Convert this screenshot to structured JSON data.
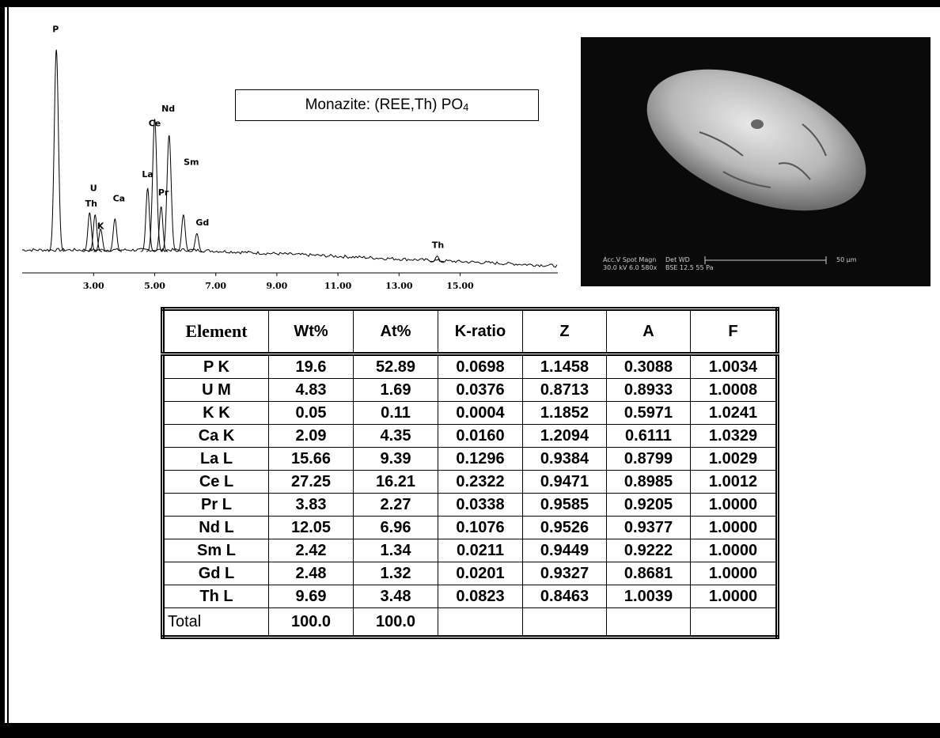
{
  "chart_data": {
    "type": "spectrum",
    "xlim": [
      0.66,
      18.2
    ],
    "ylim": [
      0,
      100
    ],
    "xticks": [
      {
        "value": 3,
        "label": "3.00"
      },
      {
        "value": 5,
        "label": "5.00"
      },
      {
        "value": 7,
        "label": "7.00"
      },
      {
        "value": 9,
        "label": "9.00"
      },
      {
        "value": 11,
        "label": "11.00"
      },
      {
        "value": 13,
        "label": "13.00"
      },
      {
        "value": 15,
        "label": "15.00"
      }
    ],
    "color": "#000000",
    "peaks": [
      {
        "label": "P",
        "x": 1.78,
        "height": 99
      },
      {
        "label": "Th",
        "x": 2.87,
        "height": 19
      },
      {
        "label": "U",
        "x": 3.05,
        "height": 18
      },
      {
        "label": "K",
        "x": 3.23,
        "height": 11
      },
      {
        "label": "Ca",
        "x": 3.7,
        "height": 16
      },
      {
        "label": "La",
        "x": 4.77,
        "height": 31
      },
      {
        "label": "Ce",
        "x": 5.0,
        "height": 65
      },
      {
        "label": "Pr",
        "x": 5.21,
        "height": 22
      },
      {
        "label": "Nd",
        "x": 5.47,
        "height": 57
      },
      {
        "label": "Sm",
        "x": 5.94,
        "height": 18
      },
      {
        "label": "Gd",
        "x": 6.38,
        "height": 9
      },
      {
        "label": "Th",
        "x": 14.25,
        "height": 3
      }
    ]
  },
  "formula_box": {
    "text": "Monazite:  (REE,Th) PO",
    "subscript": "4"
  },
  "image": {
    "caption": [
      "Acc.V  Spot Magn",
      "30.0 kV 6.0  580x",
      "Det  WD",
      "BSE 12.5  55 Pa"
    ],
    "scale_label": "50 µm"
  },
  "table": {
    "header": [
      "Element",
      "Wt%",
      "At%",
      "K-ratio",
      "Z",
      "A",
      "F"
    ],
    "rows": [
      [
        "P K",
        "19.6",
        "52.89",
        "0.0698",
        "1.1458",
        "0.3088",
        "1.0034"
      ],
      [
        "U M",
        "4.83",
        "1.69",
        "0.0376",
        "0.8713",
        "0.8933",
        "1.0008"
      ],
      [
        "K K",
        "0.05",
        "0.11",
        "0.0004",
        "1.1852",
        "0.5971",
        "1.0241"
      ],
      [
        "Ca K",
        "2.09",
        "4.35",
        "0.0160",
        "1.2094",
        "0.6111",
        "1.0329"
      ],
      [
        "La L",
        "15.66",
        "9.39",
        "0.1296",
        "0.9384",
        "0.8799",
        "1.0029"
      ],
      [
        "Ce L",
        "27.25",
        "16.21",
        "0.2322",
        "0.9471",
        "0.8985",
        "1.0012"
      ],
      [
        "Pr L",
        "3.83",
        "2.27",
        "0.0338",
        "0.9585",
        "0.9205",
        "1.0000"
      ],
      [
        "Nd L",
        "12.05",
        "6.96",
        "0.1076",
        "0.9526",
        "0.9377",
        "1.0000"
      ],
      [
        "Sm L",
        "2.42",
        "1.34",
        "0.0211",
        "0.9449",
        "0.9222",
        "1.0000"
      ],
      [
        "Gd L",
        "2.48",
        "1.32",
        "0.0201",
        "0.9327",
        "0.8681",
        "1.0000"
      ],
      [
        "Th L",
        "9.69",
        "3.48",
        "0.0823",
        "0.8463",
        "1.0039",
        "1.0000"
      ]
    ],
    "total": [
      "Total",
      "100.0",
      "100.0"
    ]
  }
}
